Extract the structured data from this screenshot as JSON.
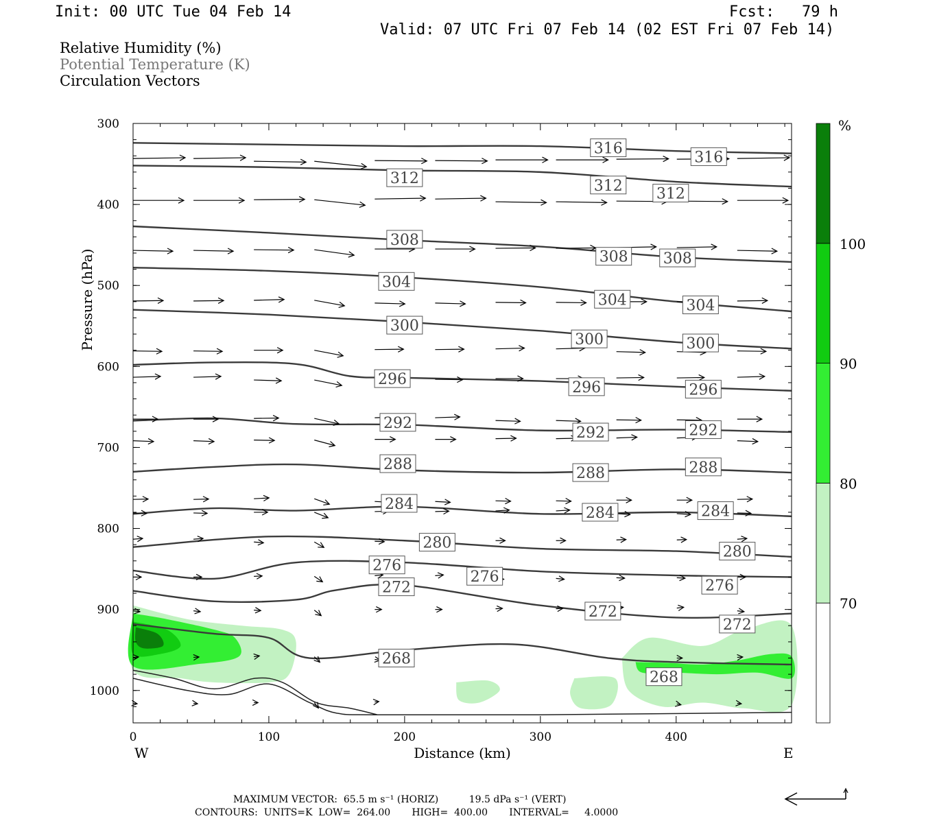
{
  "header": {
    "init": "Init: 00 UTC Tue 04 Feb 14",
    "fcst": "Fcst:   79 h",
    "valid": "Valid: 07 UTC Fri 07 Feb 14 (02 EST Fri 07 Feb 14)"
  },
  "legend": {
    "rh": "Relative Humidity (%)",
    "theta": "Potential Temperature (K)",
    "vectors": "Circulation Vectors"
  },
  "footer": {
    "max_vector": "MAXIMUM VECTOR:  65.5 m s⁻¹ (HORIZ)          19.5 dPa s⁻¹ (VERT)",
    "contours": "CONTOURS:  UNITS=K  LOW=  264.00       HIGH=  400.00       INTERVAL=     4.0000"
  },
  "colors": {
    "rh70": "#c2f2c2",
    "rh80": "#33ee33",
    "rh90": "#11cc11",
    "rh100": "#0a7f0a",
    "contour": "#3a3a3a"
  },
  "chart_data": {
    "type": "cross-section",
    "xlabel": "Distance (km)",
    "ylabel": "Pressure (hPa)",
    "xlim": [
      0,
      485
    ],
    "ylim": [
      300,
      1040
    ],
    "y_scale": "linear (inverted)",
    "x_ticks": [
      0,
      100,
      200,
      300,
      400
    ],
    "y_ticks": [
      300,
      400,
      500,
      600,
      700,
      800,
      900,
      1000
    ],
    "x_end_labels": {
      "left": "W",
      "right": "E"
    },
    "colorbar": {
      "unit": "%",
      "levels": [
        70,
        80,
        90,
        100
      ],
      "colors": [
        "#ffffff",
        "#c2f2c2",
        "#33ee33",
        "#11cc11",
        "#0a7f0a"
      ]
    },
    "theta_contours": [
      {
        "value": "316",
        "points": [
          [
            0,
            324
          ],
          [
            100,
            326
          ],
          [
            200,
            328
          ],
          [
            300,
            328
          ],
          [
            400,
            334
          ],
          [
            485,
            337
          ]
        ],
        "labels": [
          [
            350,
            330
          ],
          [
            424,
            341
          ]
        ]
      },
      {
        "value": "312",
        "points": [
          [
            0,
            352
          ],
          [
            100,
            354
          ],
          [
            200,
            358
          ],
          [
            300,
            360
          ],
          [
            400,
            372
          ],
          [
            485,
            378
          ]
        ],
        "labels": [
          [
            200,
            367
          ],
          [
            350,
            376
          ],
          [
            396,
            386
          ]
        ]
      },
      {
        "value": "308",
        "points": [
          [
            0,
            427
          ],
          [
            100,
            435
          ],
          [
            200,
            444
          ],
          [
            300,
            452
          ],
          [
            400,
            465
          ],
          [
            485,
            471
          ]
        ],
        "labels": [
          [
            200,
            443
          ],
          [
            354,
            464
          ],
          [
            401,
            466
          ]
        ]
      },
      {
        "value": "304",
        "points": [
          [
            0,
            478
          ],
          [
            100,
            482
          ],
          [
            200,
            490
          ],
          [
            300,
            502
          ],
          [
            400,
            520
          ],
          [
            485,
            532
          ]
        ],
        "labels": [
          [
            194,
            495
          ],
          [
            353,
            517
          ],
          [
            418,
            524
          ]
        ]
      },
      {
        "value": "300",
        "points": [
          [
            0,
            530
          ],
          [
            100,
            536
          ],
          [
            200,
            545
          ],
          [
            300,
            556
          ],
          [
            400,
            570
          ],
          [
            485,
            578
          ]
        ],
        "labels": [
          [
            200,
            549
          ],
          [
            336,
            566
          ],
          [
            418,
            571
          ]
        ]
      },
      {
        "value": "296",
        "points": [
          [
            0,
            598
          ],
          [
            60,
            595
          ],
          [
            120,
            597
          ],
          [
            160,
            612
          ],
          [
            200,
            614
          ],
          [
            300,
            618
          ],
          [
            400,
            625
          ],
          [
            485,
            630
          ]
        ],
        "labels": [
          [
            191,
            615
          ],
          [
            334,
            625
          ],
          [
            420,
            628
          ]
        ]
      },
      {
        "value": "292",
        "points": [
          [
            0,
            667
          ],
          [
            60,
            664
          ],
          [
            120,
            671
          ],
          [
            200,
            672
          ],
          [
            300,
            679
          ],
          [
            400,
            678
          ],
          [
            485,
            681
          ]
        ],
        "labels": [
          [
            195,
            669
          ],
          [
            337,
            681
          ],
          [
            420,
            678
          ]
        ]
      },
      {
        "value": "288",
        "points": [
          [
            0,
            730
          ],
          [
            60,
            724
          ],
          [
            120,
            721
          ],
          [
            200,
            728
          ],
          [
            300,
            731
          ],
          [
            400,
            727
          ],
          [
            485,
            731
          ]
        ],
        "labels": [
          [
            195,
            720
          ],
          [
            337,
            731
          ],
          [
            420,
            724
          ]
        ]
      },
      {
        "value": "284",
        "points": [
          [
            0,
            782
          ],
          [
            60,
            775
          ],
          [
            120,
            778
          ],
          [
            200,
            773
          ],
          [
            300,
            782
          ],
          [
            400,
            780
          ],
          [
            485,
            785
          ]
        ],
        "labels": [
          [
            196,
            769
          ],
          [
            344,
            780
          ],
          [
            429,
            778
          ]
        ]
      },
      {
        "value": "280",
        "points": [
          [
            0,
            823
          ],
          [
            100,
            810
          ],
          [
            200,
            815
          ],
          [
            300,
            825
          ],
          [
            400,
            828
          ],
          [
            485,
            835
          ]
        ],
        "labels": [
          [
            224,
            817
          ],
          [
            445,
            828
          ]
        ]
      },
      {
        "value": "276",
        "points": [
          [
            0,
            852
          ],
          [
            60,
            862
          ],
          [
            120,
            842
          ],
          [
            200,
            842
          ],
          [
            300,
            853
          ],
          [
            400,
            858
          ],
          [
            485,
            860
          ]
        ],
        "labels": [
          [
            187,
            845
          ],
          [
            259,
            859
          ],
          [
            432,
            870
          ]
        ]
      },
      {
        "value": "272",
        "points": [
          [
            0,
            877
          ],
          [
            60,
            890
          ],
          [
            120,
            888
          ],
          [
            150,
            876
          ],
          [
            200,
            870
          ],
          [
            300,
            895
          ],
          [
            400,
            910
          ],
          [
            485,
            905
          ]
        ],
        "labels": [
          [
            194,
            872
          ],
          [
            346,
            902
          ],
          [
            445,
            918
          ]
        ]
      },
      {
        "value": "268",
        "points": [
          [
            0,
            918
          ],
          [
            60,
            930
          ],
          [
            100,
            935
          ],
          [
            130,
            960
          ],
          [
            200,
            950
          ],
          [
            280,
            943
          ],
          [
            350,
            960
          ],
          [
            400,
            965
          ],
          [
            485,
            968
          ]
        ],
        "labels": [
          [
            194,
            960
          ],
          [
            391,
            983
          ]
        ]
      }
    ],
    "vector_field": "horizontal circulation vectors, mostly eastward (W to E), stronger aloft",
    "maximum_vector": {
      "horizontal": "65.5 m s-1",
      "vertical": "19.5 dPa s-1"
    },
    "contour_info": {
      "units": "K",
      "low": 264.0,
      "high": 400.0,
      "interval": 4.0
    }
  }
}
